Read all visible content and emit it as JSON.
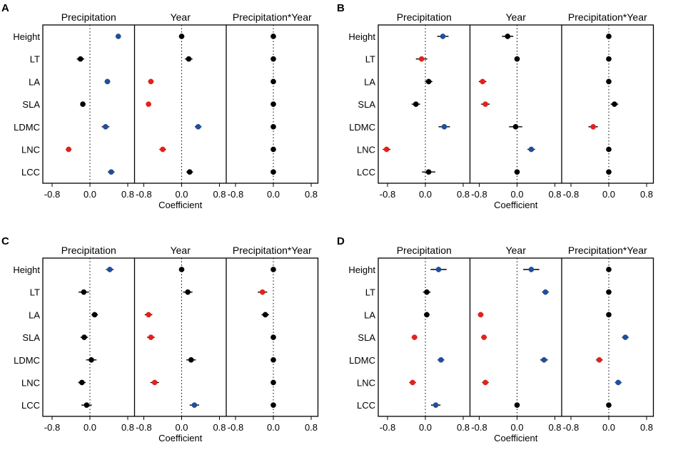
{
  "chart_data": {
    "type": "scatter",
    "subtype": "coefficient-forest-plot",
    "xlabel": "Coefficient",
    "xticks": [
      "-0.8",
      "0.0",
      "0.8"
    ],
    "xlim": [
      -0.95,
      0.95
    ],
    "colors": {
      "negative": "#e3211c",
      "positive": "#1f4e9c",
      "nonsignificant": "#000000"
    },
    "traits": [
      "Height",
      "LT",
      "LA",
      "SLA",
      "LDMC",
      "LNC",
      "LCC"
    ],
    "effects": [
      "Precipitation",
      "Year",
      "Precipitation*Year"
    ],
    "panels": [
      {
        "label": "A",
        "groups": [
          {
            "name": "Precipitation",
            "points": [
              {
                "trait": "Height",
                "value": 0.6,
                "err": 0.05,
                "sig": "pos"
              },
              {
                "trait": "LT",
                "value": -0.2,
                "err": 0.08,
                "sig": "ns"
              },
              {
                "trait": "LA",
                "value": 0.37,
                "err": 0.06,
                "sig": "pos"
              },
              {
                "trait": "SLA",
                "value": -0.15,
                "err": 0.04,
                "sig": "ns"
              },
              {
                "trait": "LDMC",
                "value": 0.33,
                "err": 0.08,
                "sig": "pos"
              },
              {
                "trait": "LNC",
                "value": -0.45,
                "err": 0.06,
                "sig": "neg"
              },
              {
                "trait": "LCC",
                "value": 0.45,
                "err": 0.07,
                "sig": "pos"
              }
            ]
          },
          {
            "name": "Year",
            "points": [
              {
                "trait": "Height",
                "value": 0.0,
                "err": 0.02,
                "sig": "ns"
              },
              {
                "trait": "LT",
                "value": 0.15,
                "err": 0.08,
                "sig": "ns"
              },
              {
                "trait": "LA",
                "value": -0.65,
                "err": 0.06,
                "sig": "neg"
              },
              {
                "trait": "SLA",
                "value": -0.7,
                "err": 0.05,
                "sig": "neg"
              },
              {
                "trait": "LDMC",
                "value": 0.35,
                "err": 0.07,
                "sig": "pos"
              },
              {
                "trait": "LNC",
                "value": -0.4,
                "err": 0.07,
                "sig": "neg"
              },
              {
                "trait": "LCC",
                "value": 0.17,
                "err": 0.07,
                "sig": "ns"
              }
            ]
          },
          {
            "name": "Precipitation*Year",
            "points": [
              {
                "trait": "Height",
                "value": 0.0,
                "err": 0.02,
                "sig": "ns"
              },
              {
                "trait": "LT",
                "value": 0.0,
                "err": 0.02,
                "sig": "ns"
              },
              {
                "trait": "LA",
                "value": 0.0,
                "err": 0.02,
                "sig": "ns"
              },
              {
                "trait": "SLA",
                "value": 0.0,
                "err": 0.02,
                "sig": "ns"
              },
              {
                "trait": "LDMC",
                "value": 0.0,
                "err": 0.02,
                "sig": "ns"
              },
              {
                "trait": "LNC",
                "value": 0.0,
                "err": 0.02,
                "sig": "ns"
              },
              {
                "trait": "LCC",
                "value": 0.0,
                "err": 0.02,
                "sig": "ns"
              }
            ]
          }
        ]
      },
      {
        "label": "B",
        "groups": [
          {
            "name": "Precipitation",
            "points": [
              {
                "trait": "Height",
                "value": 0.37,
                "err": 0.12,
                "sig": "pos"
              },
              {
                "trait": "LT",
                "value": -0.08,
                "err": 0.12,
                "sig": "neg"
              },
              {
                "trait": "LA",
                "value": 0.07,
                "err": 0.08,
                "sig": "ns"
              },
              {
                "trait": "SLA",
                "value": -0.2,
                "err": 0.09,
                "sig": "ns"
              },
              {
                "trait": "LDMC",
                "value": 0.4,
                "err": 0.12,
                "sig": "pos"
              },
              {
                "trait": "LNC",
                "value": -0.82,
                "err": 0.08,
                "sig": "neg"
              },
              {
                "trait": "LCC",
                "value": 0.07,
                "err": 0.14,
                "sig": "ns"
              }
            ]
          },
          {
            "name": "Year",
            "points": [
              {
                "trait": "Height",
                "value": -0.2,
                "err": 0.12,
                "sig": "ns"
              },
              {
                "trait": "LT",
                "value": 0.0,
                "err": 0.02,
                "sig": "ns"
              },
              {
                "trait": "LA",
                "value": -0.73,
                "err": 0.08,
                "sig": "neg"
              },
              {
                "trait": "SLA",
                "value": -0.67,
                "err": 0.09,
                "sig": "neg"
              },
              {
                "trait": "LDMC",
                "value": -0.03,
                "err": 0.14,
                "sig": "ns"
              },
              {
                "trait": "LNC",
                "value": 0.3,
                "err": 0.08,
                "sig": "pos"
              },
              {
                "trait": "LCC",
                "value": 0.0,
                "err": 0.02,
                "sig": "ns"
              }
            ]
          },
          {
            "name": "Precipitation*Year",
            "points": [
              {
                "trait": "Height",
                "value": 0.0,
                "err": 0.02,
                "sig": "ns"
              },
              {
                "trait": "LT",
                "value": 0.0,
                "err": 0.02,
                "sig": "ns"
              },
              {
                "trait": "LA",
                "value": 0.0,
                "err": 0.02,
                "sig": "ns"
              },
              {
                "trait": "SLA",
                "value": 0.12,
                "err": 0.08,
                "sig": "ns"
              },
              {
                "trait": "LDMC",
                "value": -0.33,
                "err": 0.1,
                "sig": "neg"
              },
              {
                "trait": "LNC",
                "value": 0.0,
                "err": 0.02,
                "sig": "ns"
              },
              {
                "trait": "LCC",
                "value": 0.0,
                "err": 0.02,
                "sig": "ns"
              }
            ]
          }
        ]
      },
      {
        "label": "C",
        "groups": [
          {
            "name": "Precipitation",
            "points": [
              {
                "trait": "Height",
                "value": 0.42,
                "err": 0.08,
                "sig": "pos"
              },
              {
                "trait": "LT",
                "value": -0.13,
                "err": 0.11,
                "sig": "ns"
              },
              {
                "trait": "LA",
                "value": 0.1,
                "err": 0.07,
                "sig": "ns"
              },
              {
                "trait": "SLA",
                "value": -0.12,
                "err": 0.08,
                "sig": "ns"
              },
              {
                "trait": "LDMC",
                "value": 0.03,
                "err": 0.11,
                "sig": "ns"
              },
              {
                "trait": "LNC",
                "value": -0.17,
                "err": 0.08,
                "sig": "ns"
              },
              {
                "trait": "LCC",
                "value": -0.07,
                "err": 0.11,
                "sig": "ns"
              }
            ]
          },
          {
            "name": "Year",
            "points": [
              {
                "trait": "Height",
                "value": 0.0,
                "err": 0.02,
                "sig": "ns"
              },
              {
                "trait": "LT",
                "value": 0.13,
                "err": 0.1,
                "sig": "ns"
              },
              {
                "trait": "LA",
                "value": -0.7,
                "err": 0.08,
                "sig": "neg"
              },
              {
                "trait": "SLA",
                "value": -0.65,
                "err": 0.08,
                "sig": "neg"
              },
              {
                "trait": "LDMC",
                "value": 0.2,
                "err": 0.1,
                "sig": "ns"
              },
              {
                "trait": "LNC",
                "value": -0.57,
                "err": 0.09,
                "sig": "neg"
              },
              {
                "trait": "LCC",
                "value": 0.27,
                "err": 0.1,
                "sig": "pos"
              }
            ]
          },
          {
            "name": "Precipitation*Year",
            "points": [
              {
                "trait": "Height",
                "value": 0.0,
                "err": 0.02,
                "sig": "ns"
              },
              {
                "trait": "LT",
                "value": -0.23,
                "err": 0.1,
                "sig": "neg"
              },
              {
                "trait": "LA",
                "value": -0.17,
                "err": 0.08,
                "sig": "ns"
              },
              {
                "trait": "SLA",
                "value": 0.0,
                "err": 0.02,
                "sig": "ns"
              },
              {
                "trait": "LDMC",
                "value": 0.0,
                "err": 0.02,
                "sig": "ns"
              },
              {
                "trait": "LNC",
                "value": 0.0,
                "err": 0.02,
                "sig": "ns"
              },
              {
                "trait": "LCC",
                "value": 0.0,
                "err": 0.02,
                "sig": "ns"
              }
            ]
          }
        ]
      },
      {
        "label": "D",
        "groups": [
          {
            "name": "Precipitation",
            "points": [
              {
                "trait": "Height",
                "value": 0.28,
                "err": 0.17,
                "sig": "pos"
              },
              {
                "trait": "LT",
                "value": 0.03,
                "err": 0.08,
                "sig": "ns"
              },
              {
                "trait": "LA",
                "value": 0.03,
                "err": 0.06,
                "sig": "ns"
              },
              {
                "trait": "SLA",
                "value": -0.23,
                "err": 0.06,
                "sig": "neg"
              },
              {
                "trait": "LDMC",
                "value": 0.33,
                "err": 0.07,
                "sig": "pos"
              },
              {
                "trait": "LNC",
                "value": -0.27,
                "err": 0.07,
                "sig": "neg"
              },
              {
                "trait": "LCC",
                "value": 0.22,
                "err": 0.1,
                "sig": "pos"
              }
            ]
          },
          {
            "name": "Year",
            "points": [
              {
                "trait": "Height",
                "value": 0.3,
                "err": 0.17,
                "sig": "pos"
              },
              {
                "trait": "LT",
                "value": 0.6,
                "err": 0.07,
                "sig": "pos"
              },
              {
                "trait": "LA",
                "value": -0.77,
                "err": 0.06,
                "sig": "neg"
              },
              {
                "trait": "SLA",
                "value": -0.7,
                "err": 0.06,
                "sig": "neg"
              },
              {
                "trait": "LDMC",
                "value": 0.57,
                "err": 0.08,
                "sig": "pos"
              },
              {
                "trait": "LNC",
                "value": -0.67,
                "err": 0.07,
                "sig": "neg"
              },
              {
                "trait": "LCC",
                "value": 0.0,
                "err": 0.02,
                "sig": "ns"
              }
            ]
          },
          {
            "name": "Precipitation*Year",
            "points": [
              {
                "trait": "Height",
                "value": 0.0,
                "err": 0.02,
                "sig": "ns"
              },
              {
                "trait": "LT",
                "value": 0.0,
                "err": 0.02,
                "sig": "ns"
              },
              {
                "trait": "LA",
                "value": 0.0,
                "err": 0.02,
                "sig": "ns"
              },
              {
                "trait": "SLA",
                "value": 0.35,
                "err": 0.07,
                "sig": "pos"
              },
              {
                "trait": "LDMC",
                "value": -0.2,
                "err": 0.07,
                "sig": "neg"
              },
              {
                "trait": "LNC",
                "value": 0.2,
                "err": 0.07,
                "sig": "pos"
              },
              {
                "trait": "LCC",
                "value": 0.0,
                "err": 0.02,
                "sig": "ns"
              }
            ]
          }
        ]
      }
    ]
  }
}
